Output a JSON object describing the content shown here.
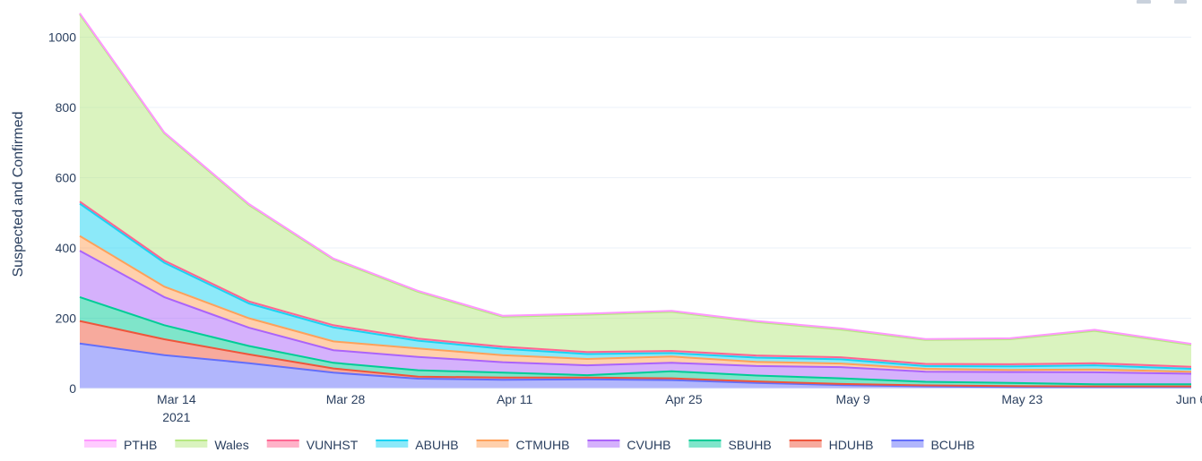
{
  "chart_data": {
    "type": "area",
    "stacked": true,
    "ylabel": "Suspected and Confirmed",
    "xlabel": "",
    "x_start": "2021-03-06",
    "x_end": "2021-06-06",
    "ylim": [
      0,
      1070
    ],
    "y_ticks": [
      0,
      200,
      400,
      600,
      800,
      1000
    ],
    "x_ticks": [
      {
        "date": "2021-03-14",
        "label": "Mar 14",
        "sublabel": "2021"
      },
      {
        "date": "2021-03-28",
        "label": "Mar 28",
        "sublabel": ""
      },
      {
        "date": "2021-04-11",
        "label": "Apr 11",
        "sublabel": ""
      },
      {
        "date": "2021-04-25",
        "label": "Apr 25",
        "sublabel": ""
      },
      {
        "date": "2021-05-09",
        "label": "May 9",
        "sublabel": ""
      },
      {
        "date": "2021-05-23",
        "label": "May 23",
        "sublabel": ""
      },
      {
        "date": "2021-06-06",
        "label": "Jun 6",
        "sublabel": ""
      }
    ],
    "grid": true,
    "legend_position": "bottom",
    "dates": [
      "2021-03-06",
      "2021-03-13",
      "2021-03-20",
      "2021-03-27",
      "2021-04-03",
      "2021-04-10",
      "2021-04-17",
      "2021-04-24",
      "2021-05-01",
      "2021-05-08",
      "2021-05-15",
      "2021-05-22",
      "2021-05-29",
      "2021-06-06"
    ],
    "series": [
      {
        "name": "BCUHB",
        "color": "#636efa",
        "values": [
          128,
          95,
          72,
          45,
          28,
          25,
          26,
          24,
          16,
          10,
          6,
          4,
          3,
          3
        ]
      },
      {
        "name": "HDUHB",
        "color": "#ef553b",
        "values": [
          64,
          45,
          25,
          12,
          6,
          6,
          5,
          5,
          4,
          3,
          3,
          3,
          3,
          3
        ]
      },
      {
        "name": "SBUHB",
        "color": "#00cc96",
        "values": [
          68,
          40,
          24,
          16,
          18,
          14,
          7,
          20,
          17,
          16,
          10,
          9,
          6,
          6
        ]
      },
      {
        "name": "CVUHB",
        "color": "#ab63fa",
        "values": [
          132,
          80,
          52,
          36,
          38,
          30,
          28,
          24,
          27,
          32,
          29,
          31,
          34,
          30
        ]
      },
      {
        "name": "CTMUHB",
        "color": "#ffa15a",
        "values": [
          42,
          30,
          27,
          25,
          24,
          20,
          18,
          18,
          12,
          10,
          8,
          6,
          8,
          6
        ]
      },
      {
        "name": "ABUHB",
        "color": "#19d3f3",
        "values": [
          92,
          68,
          42,
          40,
          22,
          18,
          14,
          10,
          12,
          12,
          8,
          10,
          12,
          8
        ]
      },
      {
        "name": "VUNHST",
        "color": "#ff6692",
        "values": [
          6,
          6,
          6,
          6,
          6,
          6,
          6,
          6,
          6,
          6,
          6,
          6,
          6,
          6
        ]
      },
      {
        "name": "Wales",
        "color": "#b6e880",
        "values": [
          533,
          362,
          274,
          187,
          133,
          85,
          106,
          111,
          95,
          79,
          68,
          71,
          92,
          62
        ]
      },
      {
        "name": "PTHB",
        "color": "#ff97ff",
        "values": [
          3,
          3,
          3,
          3,
          3,
          3,
          3,
          3,
          3,
          3,
          3,
          3,
          3,
          3
        ]
      }
    ],
    "legend_order": [
      "PTHB",
      "Wales",
      "VUNHST",
      "ABUHB",
      "CTMUHB",
      "CVUHB",
      "SBUHB",
      "HDUHB",
      "BCUHB"
    ]
  }
}
